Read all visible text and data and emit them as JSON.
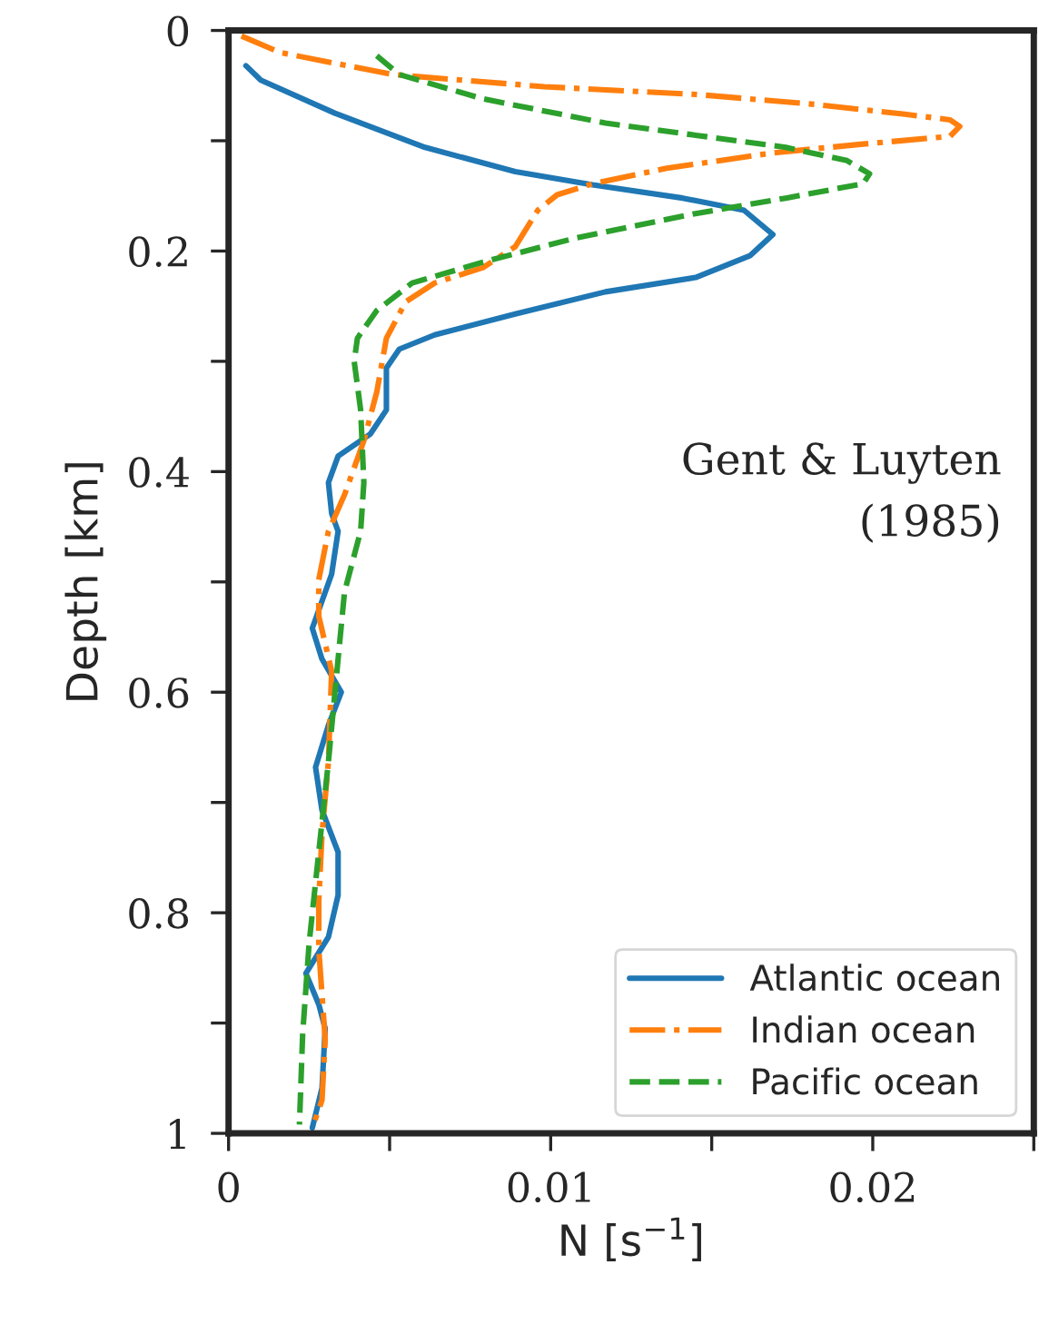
{
  "chart_data": {
    "type": "line",
    "xlabel": "N [s$^{−1}$]",
    "ylabel": "Depth [km]",
    "annotations": [
      "Gent & Luyten\n(1985)"
    ],
    "xlim": [
      0,
      0.025
    ],
    "xticks": [
      0,
      {
        "value": 0.005,
        "label": null
      },
      0.01,
      {
        "value": 0.015,
        "label": null
      },
      0.02,
      {
        "value": 0.025,
        "label": null
      }
    ],
    "ylim": [
      1,
      0
    ],
    "yticks": [
      0,
      {
        "value": 0.1,
        "label": null
      },
      0.2,
      {
        "value": 0.3,
        "label": null
      },
      0.4,
      {
        "value": 0.5,
        "label": null
      },
      0.6,
      {
        "value": 0.7,
        "label": null
      },
      0.8,
      {
        "value": 0.9,
        "label": null
      },
      1
    ],
    "grid": false,
    "legend": "bottom right",
    "marker": "none",
    "series": [
      {
        "name": "Atlantic ocean",
        "color": "#1f77b4",
        "line_style": "solid",
        "x": [
          0.00054,
          0.001,
          0.0033,
          0.0061,
          0.0089,
          0.0113,
          0.0141,
          0.016,
          0.0169,
          0.0162,
          0.0145,
          0.0117,
          0.0089,
          0.0064,
          0.0053,
          0.0049,
          0.0049,
          0.0044,
          0.0034,
          0.0031,
          0.0032,
          0.0034,
          0.0032,
          0.0026,
          0.0029,
          0.0035,
          0.0031,
          0.0027,
          0.0029,
          0.0034,
          0.0034,
          0.0031,
          0.0024,
          0.0028,
          0.003,
          0.0029,
          0.0026
        ],
        "values": [
          0.032,
          0.045,
          0.075,
          0.106,
          0.128,
          0.14,
          0.152,
          0.163,
          0.185,
          0.204,
          0.224,
          0.237,
          0.257,
          0.276,
          0.289,
          0.306,
          0.344,
          0.366,
          0.386,
          0.41,
          0.438,
          0.454,
          0.493,
          0.542,
          0.57,
          0.6,
          0.63,
          0.668,
          0.707,
          0.745,
          0.784,
          0.822,
          0.855,
          0.883,
          0.905,
          0.959,
          0.995
        ]
      },
      {
        "name": "Indian ocean",
        "color": "#ff7f0e",
        "line_style": "dashdot",
        "x": [
          0.0004,
          0.0016,
          0.0051,
          0.0098,
          0.0145,
          0.0182,
          0.021,
          0.0224,
          0.0227,
          0.0224,
          0.0197,
          0.0169,
          0.0136,
          0.0113,
          0.0102,
          0.0096,
          0.0089,
          0.0079,
          0.0064,
          0.0055,
          0.0049,
          0.0046,
          0.0042,
          0.0036,
          0.0031,
          0.0028,
          0.0028,
          0.0032,
          0.0031,
          0.0029,
          0.0028,
          0.0028,
          0.003,
          0.0029,
          0.0026
        ],
        "values": [
          0.005,
          0.02,
          0.04,
          0.051,
          0.058,
          0.067,
          0.076,
          0.081,
          0.087,
          0.096,
          0.103,
          0.111,
          0.125,
          0.139,
          0.149,
          0.163,
          0.196,
          0.215,
          0.229,
          0.246,
          0.279,
          0.328,
          0.372,
          0.421,
          0.454,
          0.498,
          0.531,
          0.581,
          0.663,
          0.729,
          0.789,
          0.833,
          0.915,
          0.97,
          0.995
        ]
      },
      {
        "name": "Pacific ocean",
        "color": "#2ca02c",
        "line_style": "dashed",
        "x": [
          0.0046,
          0.0053,
          0.0079,
          0.0117,
          0.0145,
          0.0173,
          0.0192,
          0.0199,
          0.0197,
          0.0173,
          0.0145,
          0.0108,
          0.0079,
          0.0057,
          0.0046,
          0.004,
          0.0039,
          0.0041,
          0.0042,
          0.0041,
          0.0036,
          0.0034,
          0.0031,
          0.0028,
          0.0025,
          0.0023,
          0.0022
        ],
        "values": [
          0.023,
          0.04,
          0.062,
          0.084,
          0.095,
          0.106,
          0.118,
          0.13,
          0.139,
          0.152,
          0.166,
          0.188,
          0.21,
          0.229,
          0.254,
          0.279,
          0.3,
          0.344,
          0.41,
          0.454,
          0.509,
          0.57,
          0.663,
          0.745,
          0.828,
          0.91,
          0.992
        ]
      }
    ]
  }
}
